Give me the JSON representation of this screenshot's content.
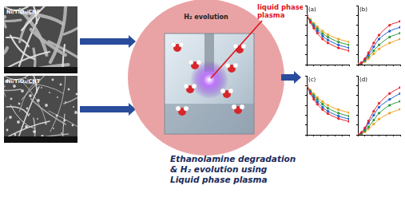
{
  "sem_images": [
    {
      "label": "Ni/TiO₂/CNF"
    },
    {
      "label": "Ni/TiO₂/CNT"
    }
  ],
  "center": {
    "top_label": "H₂ evolution",
    "callout": [
      "liquid phase",
      "plasma"
    ]
  },
  "caption": [
    "Ethanolamine degradation",
    "& H₂ evolution using",
    "Liquid phase plasma"
  ],
  "chart_data": [
    {
      "type": "line",
      "annotation": "(a)",
      "x": [
        0,
        10,
        20,
        30,
        45,
        60,
        90,
        120
      ],
      "xlim": [
        0,
        120
      ],
      "xticks": [
        0,
        20,
        40,
        60,
        80,
        100,
        120
      ],
      "ylim": [
        0,
        600
      ],
      "yticks": [
        0,
        100,
        200,
        300,
        400,
        500,
        600
      ],
      "grid": false,
      "tick_labels": false,
      "marker": "circle",
      "series": [
        {
          "color": "#e8242a",
          "values": [
            500,
            430,
            370,
            320,
            260,
            220,
            170,
            140
          ]
        },
        {
          "color": "#1f5fd0",
          "values": [
            500,
            440,
            390,
            345,
            290,
            250,
            200,
            170
          ]
        },
        {
          "color": "#2a9a3a",
          "values": [
            500,
            450,
            405,
            365,
            315,
            280,
            230,
            200
          ]
        },
        {
          "color": "#f0a020",
          "values": [
            500,
            460,
            420,
            385,
            340,
            305,
            260,
            230
          ]
        }
      ]
    },
    {
      "type": "line",
      "annotation": "(b)",
      "x": [
        0,
        10,
        20,
        30,
        45,
        60,
        90,
        120
      ],
      "xlim": [
        0,
        120
      ],
      "xticks": [
        0,
        20,
        40,
        60,
        80,
        100,
        120
      ],
      "ylim": [
        0,
        30
      ],
      "yticks": [
        0,
        5,
        10,
        15,
        20,
        25,
        30
      ],
      "grid": false,
      "tick_labels": false,
      "marker": "circle",
      "series": [
        {
          "color": "#e8242a",
          "values": [
            0,
            1,
            3,
            6,
            11,
            15,
            20,
            22
          ]
        },
        {
          "color": "#1f5fd0",
          "values": [
            0,
            0.8,
            2.5,
            5,
            9,
            13,
            17,
            19
          ]
        },
        {
          "color": "#2a9a3a",
          "values": [
            0,
            0.6,
            2,
            4,
            7,
            10,
            14,
            16
          ]
        },
        {
          "color": "#f0a020",
          "values": [
            0,
            0.5,
            1.5,
            3,
            5.5,
            8,
            11,
            13
          ]
        }
      ]
    },
    {
      "type": "line",
      "annotation": "(c)",
      "x": [
        0,
        10,
        20,
        30,
        45,
        60,
        90,
        120
      ],
      "xlim": [
        0,
        120
      ],
      "xticks": [
        0,
        20,
        40,
        60,
        80,
        100,
        120
      ],
      "ylim": [
        0,
        600
      ],
      "yticks": [
        0,
        100,
        200,
        300,
        400,
        500,
        600
      ],
      "grid": false,
      "tick_labels": false,
      "marker": "circle",
      "series": [
        {
          "color": "#e8242a",
          "values": [
            500,
            420,
            360,
            310,
            255,
            215,
            165,
            135
          ]
        },
        {
          "color": "#1f5fd0",
          "values": [
            500,
            435,
            380,
            335,
            280,
            240,
            190,
            160
          ]
        },
        {
          "color": "#2a9a3a",
          "values": [
            500,
            445,
            400,
            360,
            310,
            270,
            220,
            190
          ]
        },
        {
          "color": "#f0a020",
          "values": [
            500,
            455,
            415,
            380,
            335,
            300,
            255,
            225
          ]
        }
      ]
    },
    {
      "type": "line",
      "annotation": "(d)",
      "x": [
        0,
        10,
        20,
        30,
        45,
        60,
        90,
        120
      ],
      "xlim": [
        0,
        120
      ],
      "xticks": [
        0,
        20,
        40,
        60,
        80,
        100,
        120
      ],
      "ylim": [
        0,
        30
      ],
      "yticks": [
        0,
        5,
        10,
        15,
        20,
        25,
        30
      ],
      "grid": false,
      "tick_labels": false,
      "marker": "circle",
      "series": [
        {
          "color": "#e8242a",
          "values": [
            0,
            1.2,
            3.5,
            7,
            12,
            16,
            21,
            24
          ]
        },
        {
          "color": "#1f5fd0",
          "values": [
            0,
            1,
            3,
            6,
            10,
            14,
            18,
            21
          ]
        },
        {
          "color": "#2a9a3a",
          "values": [
            0,
            0.7,
            2,
            4,
            7.5,
            11,
            15,
            17
          ]
        },
        {
          "color": "#f0a020",
          "values": [
            0,
            0.5,
            1.5,
            3,
            5.5,
            8,
            11,
            13
          ]
        }
      ]
    }
  ]
}
